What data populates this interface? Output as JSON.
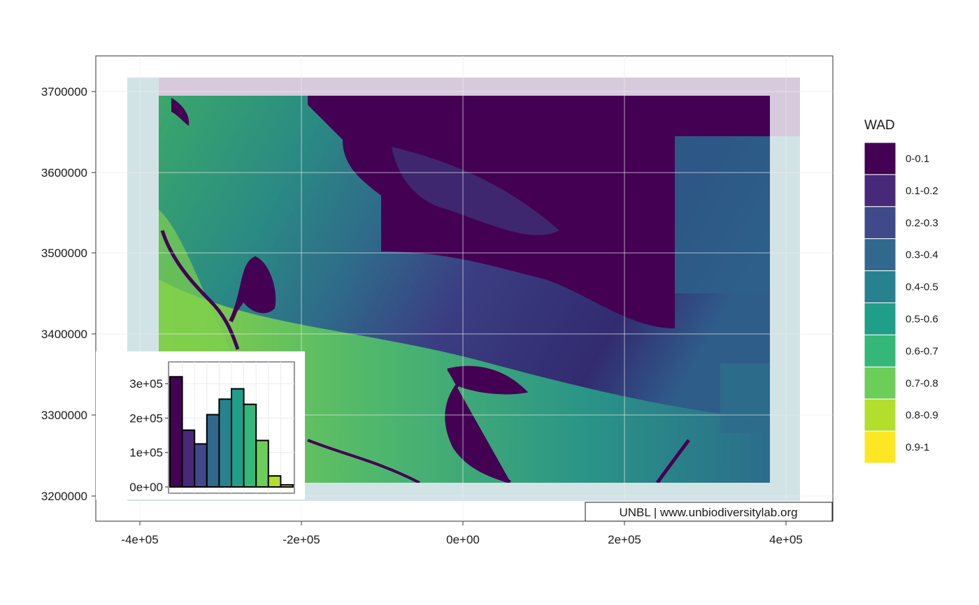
{
  "map": {
    "y_ticks": [
      "3700000",
      "3600000",
      "3500000",
      "3400000",
      "3300000",
      "3200000"
    ],
    "x_ticks": [
      "-4e+05",
      "-2e+05",
      "0e+00",
      "2e+05",
      "4e+05"
    ],
    "attribution": "UNBL | www.unbiodiversitylab.org"
  },
  "legend": {
    "title": "WAD",
    "classes": [
      {
        "label": "0-0.1",
        "color": "#440154"
      },
      {
        "label": "0.1-0.2",
        "color": "#482878"
      },
      {
        "label": "0.2-0.3",
        "color": "#3E4A89"
      },
      {
        "label": "0.3-0.4",
        "color": "#31688E"
      },
      {
        "label": "0.4-0.5",
        "color": "#26828E"
      },
      {
        "label": "0.5-0.6",
        "color": "#1F9E89"
      },
      {
        "label": "0.6-0.7",
        "color": "#35B779"
      },
      {
        "label": "0.7-0.8",
        "color": "#6DCD59"
      },
      {
        "label": "0.8-0.9",
        "color": "#B4DE2C"
      },
      {
        "label": "0.9-1",
        "color": "#FDE725"
      }
    ]
  },
  "chart_data": {
    "type": "bar",
    "categories": [
      "0-0.1",
      "0.1-0.2",
      "0.2-0.3",
      "0.3-0.4",
      "0.4-0.5",
      "0.5-0.6",
      "0.6-0.7",
      "0.7-0.8",
      "0.8-0.9",
      "0.9-1"
    ],
    "values": [
      320000,
      165000,
      125000,
      210000,
      255000,
      285000,
      240000,
      135000,
      32000,
      6000
    ],
    "y_ticks": [
      "0e+00",
      "1e+05",
      "2e+05",
      "3e+05"
    ],
    "ylim": [
      0,
      345000
    ]
  }
}
